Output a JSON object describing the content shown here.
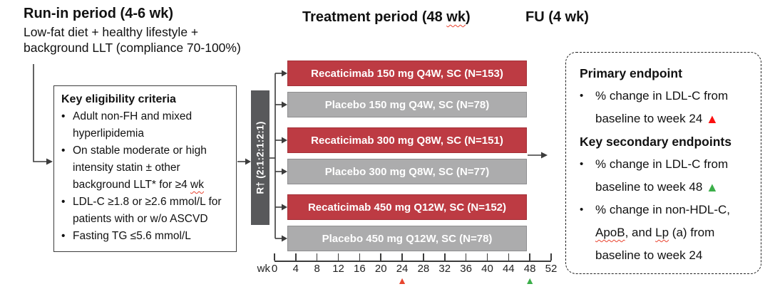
{
  "colors": {
    "drug_bar": "#bd3b43",
    "drug_bar_border": "#a33138",
    "placebo_bar": "#acacad",
    "placebo_bar_border": "#8e8e90",
    "rand_bar": "#58595b",
    "line": "#3c3c3c",
    "axis_red_marker": "#e8462f",
    "axis_green_marker": "#3bae49",
    "box_red_marker": "#fb1010",
    "box_green_marker": "#3bae49"
  },
  "run_in": {
    "title": "Run-in period (4-6 wk)",
    "subtitle_line1": "Low-fat diet + healthy lifestyle +",
    "subtitle_line2": "background LLT (compliance 70-100%)"
  },
  "treatment_header": {
    "segments": [
      {
        "t": "Treatment period (48 "
      },
      {
        "t": "wk",
        "wavy": true
      },
      {
        "t": ")"
      }
    ]
  },
  "fu_header": "FU (4 wk)",
  "eligibility": {
    "title": "Key eligibility criteria",
    "bullet": "•",
    "items": [
      {
        "segments": [
          {
            "t": "Adult non-FH and mixed hyperlipidemia"
          }
        ]
      },
      {
        "segments": [
          {
            "t": "On stable moderate or high intensity statin ± other background LLT* for ≥4 "
          },
          {
            "t": "wk",
            "wavy": true
          }
        ]
      },
      {
        "segments": [
          {
            "t": "LDL-C ≥1.8 or ≥2.6 mmol/L for patients with or w/o ASCVD"
          }
        ]
      },
      {
        "segments": [
          {
            "t": "Fasting TG ≤5.6 mmol/L"
          }
        ]
      }
    ]
  },
  "randomization": {
    "label": "R† (2:1:2:1:2:1)"
  },
  "arms": [
    {
      "label": "Recaticimab 150 mg Q4W, SC (N=153)",
      "type": "drug"
    },
    {
      "label": "Placebo 150 mg Q4W, SC (N=78)",
      "type": "placebo"
    },
    {
      "label": "Recaticimab 300 mg Q8W, SC (N=151)",
      "type": "drug"
    },
    {
      "label": "Placebo 300 mg Q8W, SC (N=77)",
      "type": "placebo"
    },
    {
      "label": "Recaticimab 450 mg Q12W, SC (N=152)",
      "type": "drug"
    },
    {
      "label": "Placebo 450 mg Q12W, SC (N=78)",
      "type": "placebo"
    }
  ],
  "axis": {
    "unit_label": "wk",
    "ticks": [
      "0",
      "4",
      "8",
      "12",
      "16",
      "20",
      "24",
      "28",
      "32",
      "36",
      "40",
      "44",
      "48",
      "52"
    ],
    "markers": [
      {
        "week": 24,
        "symbol": "▲",
        "color_key": "axis_red_marker"
      },
      {
        "week": 48,
        "symbol": "▲",
        "color_key": "axis_green_marker"
      }
    ]
  },
  "endpoints": {
    "primary_title": "Primary endpoint",
    "secondary_title": "Key secondary endpoints",
    "bullet": "•",
    "primary_items": [
      {
        "segments": [
          {
            "t": "% change in LDL-C from baseline to week 24 "
          }
        ],
        "marker": {
          "symbol": "▲",
          "color_key": "box_red_marker"
        }
      }
    ],
    "secondary_items": [
      {
        "segments": [
          {
            "t": "% change in LDL-C from baseline to week 48 "
          }
        ],
        "marker": {
          "symbol": "▲",
          "color_key": "box_green_marker"
        }
      },
      {
        "segments": [
          {
            "t": "% change in non-HDL-C, "
          },
          {
            "t": "ApoB",
            "wavy": true
          },
          {
            "t": ", and "
          },
          {
            "t": "Lp",
            "wavy": true
          },
          {
            "t": " (a) from baseline to week 24"
          }
        ]
      }
    ]
  }
}
